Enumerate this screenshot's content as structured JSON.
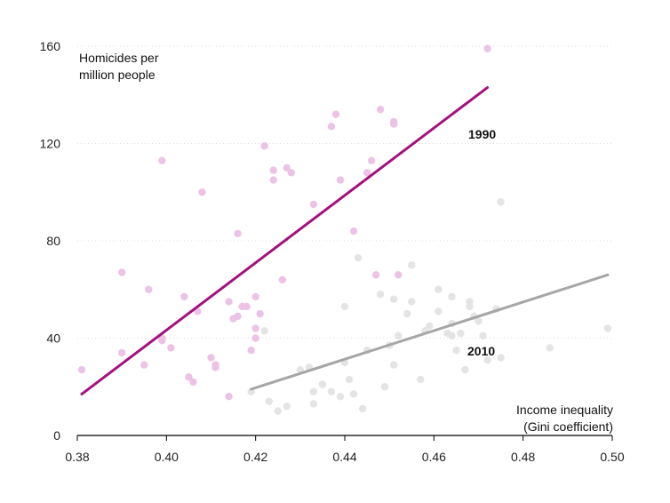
{
  "chart_data": {
    "type": "scatter",
    "title": "",
    "xlabel": "Income inequality (Gini coefficient)",
    "xlabel_lines": [
      "Income inequality",
      "(Gini coefficient)"
    ],
    "ylabel": "Homicides per million people",
    "ylabel_lines": [
      "Homicides per",
      "million people"
    ],
    "xlim": [
      0.38,
      0.5
    ],
    "ylim": [
      0,
      160
    ],
    "xticks": [
      0.38,
      0.4,
      0.42,
      0.44,
      0.46,
      0.48,
      0.5
    ],
    "xtick_labels": [
      "0.38",
      "0.40",
      "0.42",
      "0.44",
      "0.46",
      "0.48",
      "0.50"
    ],
    "yticks": [
      0,
      40,
      80,
      120,
      160
    ],
    "ytick_labels": [
      "0",
      "40",
      "80",
      "120",
      "160"
    ],
    "grid": "horizontal",
    "series": [
      {
        "name": "1990",
        "color": "#ecc3e6",
        "line_color": "#a3117e",
        "trend": [
          [
            0.381,
            17
          ],
          [
            0.472,
            143
          ]
        ],
        "points": [
          [
            0.381,
            27
          ],
          [
            0.39,
            67
          ],
          [
            0.39,
            34
          ],
          [
            0.395,
            29
          ],
          [
            0.396,
            60
          ],
          [
            0.399,
            113
          ],
          [
            0.399,
            40
          ],
          [
            0.399,
            39
          ],
          [
            0.401,
            36
          ],
          [
            0.404,
            57
          ],
          [
            0.405,
            24
          ],
          [
            0.406,
            22
          ],
          [
            0.407,
            51
          ],
          [
            0.408,
            100
          ],
          [
            0.41,
            32
          ],
          [
            0.411,
            29
          ],
          [
            0.411,
            28
          ],
          [
            0.414,
            55
          ],
          [
            0.414,
            16
          ],
          [
            0.415,
            48
          ],
          [
            0.416,
            83
          ],
          [
            0.416,
            49
          ],
          [
            0.417,
            53
          ],
          [
            0.418,
            53
          ],
          [
            0.419,
            35
          ],
          [
            0.42,
            57
          ],
          [
            0.42,
            44
          ],
          [
            0.42,
            40
          ],
          [
            0.421,
            50
          ],
          [
            0.422,
            119
          ],
          [
            0.424,
            109
          ],
          [
            0.424,
            105
          ],
          [
            0.426,
            64
          ],
          [
            0.427,
            110
          ],
          [
            0.428,
            108
          ],
          [
            0.433,
            95
          ],
          [
            0.437,
            127
          ],
          [
            0.438,
            132
          ],
          [
            0.439,
            105
          ],
          [
            0.442,
            84
          ],
          [
            0.445,
            108
          ],
          [
            0.446,
            113
          ],
          [
            0.447,
            66
          ],
          [
            0.448,
            134
          ],
          [
            0.451,
            129
          ],
          [
            0.451,
            128
          ],
          [
            0.452,
            66
          ],
          [
            0.472,
            159
          ]
        ]
      },
      {
        "name": "2010",
        "color": "#e4e4e4",
        "line_color": "#a6a6a6",
        "trend": [
          [
            0.419,
            19
          ],
          [
            0.499,
            66
          ]
        ],
        "points": [
          [
            0.419,
            18
          ],
          [
            0.422,
            43
          ],
          [
            0.423,
            14
          ],
          [
            0.425,
            10
          ],
          [
            0.427,
            12
          ],
          [
            0.43,
            27
          ],
          [
            0.432,
            28
          ],
          [
            0.433,
            18
          ],
          [
            0.433,
            13
          ],
          [
            0.435,
            21
          ],
          [
            0.437,
            18
          ],
          [
            0.439,
            16
          ],
          [
            0.44,
            53
          ],
          [
            0.44,
            30
          ],
          [
            0.441,
            23
          ],
          [
            0.442,
            17
          ],
          [
            0.443,
            73
          ],
          [
            0.444,
            11
          ],
          [
            0.445,
            35
          ],
          [
            0.448,
            58
          ],
          [
            0.449,
            20
          ],
          [
            0.45,
            37
          ],
          [
            0.451,
            56
          ],
          [
            0.451,
            29
          ],
          [
            0.452,
            41
          ],
          [
            0.454,
            50
          ],
          [
            0.455,
            70
          ],
          [
            0.455,
            55
          ],
          [
            0.457,
            23
          ],
          [
            0.458,
            43
          ],
          [
            0.459,
            45
          ],
          [
            0.461,
            60
          ],
          [
            0.461,
            51
          ],
          [
            0.463,
            42
          ],
          [
            0.464,
            57
          ],
          [
            0.464,
            46
          ],
          [
            0.464,
            41
          ],
          [
            0.465,
            35
          ],
          [
            0.466,
            42
          ],
          [
            0.467,
            27
          ],
          [
            0.468,
            55
          ],
          [
            0.468,
            53
          ],
          [
            0.469,
            49
          ],
          [
            0.47,
            47
          ],
          [
            0.471,
            41
          ],
          [
            0.472,
            31
          ],
          [
            0.474,
            52
          ],
          [
            0.475,
            96
          ],
          [
            0.475,
            32
          ],
          [
            0.486,
            36
          ],
          [
            0.499,
            44
          ]
        ]
      }
    ]
  }
}
